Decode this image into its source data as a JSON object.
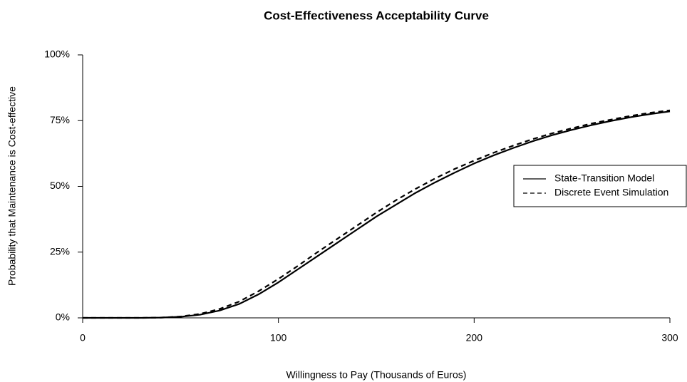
{
  "chart_data": {
    "type": "line",
    "title": "Cost-Effectiveness Acceptability Curve",
    "x_label": "Willingness to Pay (Thousands of Euros)",
    "y_label": "Probability that Maintenance is Cost-effective",
    "x": [
      0,
      10,
      20,
      30,
      40,
      50,
      60,
      70,
      80,
      90,
      100,
      110,
      120,
      130,
      140,
      150,
      160,
      170,
      180,
      190,
      200,
      210,
      220,
      230,
      240,
      250,
      260,
      270,
      280,
      290,
      300
    ],
    "series": [
      {
        "name": "State-Transition Model",
        "color": "#000000",
        "dash": "solid",
        "values": [
          0,
          0,
          0,
          0,
          0.1,
          0.4,
          1.2,
          2.8,
          5.3,
          9,
          13.5,
          18.5,
          23.5,
          28.5,
          33.5,
          38.5,
          43,
          47.5,
          51.5,
          55.2,
          58.7,
          61.8,
          64.6,
          67.2,
          69.5,
          71.5,
          73.3,
          74.9,
          76.3,
          77.5,
          78.5
        ]
      },
      {
        "name": "Discrete Event Simulation",
        "color": "#000000",
        "dash": "dashed",
        "values": [
          0,
          0,
          0,
          0,
          0.1,
          0.5,
          1.5,
          3.4,
          6.2,
          10.2,
          14.8,
          19.8,
          25,
          30,
          35,
          40,
          44.7,
          49,
          53,
          56.6,
          59.8,
          62.8,
          65.5,
          68,
          70.2,
          72.1,
          73.9,
          75.4,
          76.8,
          78,
          78.9
        ]
      }
    ],
    "xlim": [
      0,
      300
    ],
    "xticks": [
      0,
      100,
      200,
      300
    ],
    "ylim": [
      0,
      100
    ],
    "yticks": [
      {
        "value": 0,
        "label": "0%"
      },
      {
        "value": 25,
        "label": "25%"
      },
      {
        "value": 50,
        "label": "50%"
      },
      {
        "value": 75,
        "label": "75%"
      },
      {
        "value": 100,
        "label": "100%"
      }
    ],
    "grid": false,
    "legend": "right"
  }
}
